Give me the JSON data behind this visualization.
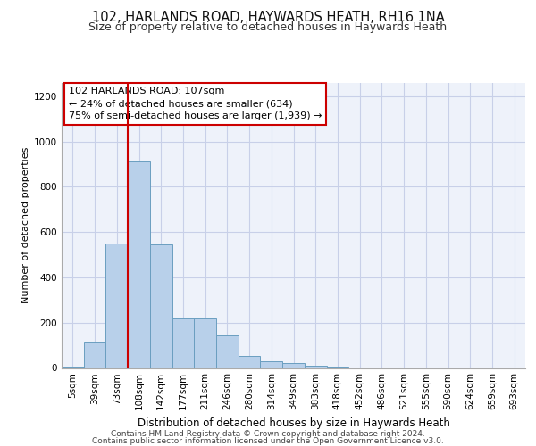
{
  "title_line1": "102, HARLANDS ROAD, HAYWARDS HEATH, RH16 1NA",
  "title_line2": "Size of property relative to detached houses in Haywards Heath",
  "xlabel": "Distribution of detached houses by size in Haywards Heath",
  "ylabel": "Number of detached properties",
  "bar_labels": [
    "5sqm",
    "39sqm",
    "73sqm",
    "108sqm",
    "142sqm",
    "177sqm",
    "211sqm",
    "246sqm",
    "280sqm",
    "314sqm",
    "349sqm",
    "383sqm",
    "418sqm",
    "452sqm",
    "486sqm",
    "521sqm",
    "555sqm",
    "590sqm",
    "624sqm",
    "659sqm",
    "693sqm"
  ],
  "bar_values": [
    5,
    115,
    550,
    910,
    545,
    220,
    220,
    145,
    55,
    30,
    20,
    10,
    5,
    0,
    0,
    0,
    0,
    0,
    0,
    0,
    0
  ],
  "bar_color": "#b8d0ea",
  "bar_edge_color": "#6a9ec0",
  "red_line_index": 3,
  "red_line_color": "#cc0000",
  "annotation_line1": "102 HARLANDS ROAD: 107sqm",
  "annotation_line2": "← 24% of detached houses are smaller (634)",
  "annotation_line3": "75% of semi-detached houses are larger (1,939) →",
  "box_edge_color": "#cc0000",
  "ylim": [
    0,
    1260
  ],
  "yticks": [
    0,
    200,
    400,
    600,
    800,
    1000,
    1200
  ],
  "footer_line1": "Contains HM Land Registry data © Crown copyright and database right 2024.",
  "footer_line2": "Contains public sector information licensed under the Open Government Licence v3.0.",
  "bg_color": "#eef2fa",
  "grid_color": "#c8d0e8",
  "title1_fontsize": 10.5,
  "title2_fontsize": 9,
  "ylabel_fontsize": 8,
  "xlabel_fontsize": 8.5,
  "tick_fontsize": 7.5,
  "ann_fontsize": 8
}
